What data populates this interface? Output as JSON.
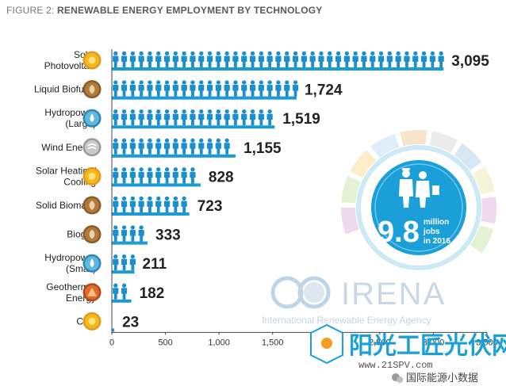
{
  "title": {
    "lead": "FIGURE 2:",
    "text": "RENEWABLE ENERGY EMPLOYMENT BY TECHNOLOGY"
  },
  "colors": {
    "bar": "#1b9ad6",
    "person": "#1b8fcc",
    "axis": "#444444"
  },
  "chart_data": {
    "type": "bar",
    "orientation": "horizontal",
    "title": "RENEWABLE ENERGY EMPLOYMENT BY TECHNOLOGY",
    "xlim": [
      0,
      3500
    ],
    "xticks": [
      "0",
      "500",
      "1,000",
      "1,500",
      "2,000",
      "2,500",
      "3,000",
      "3,500"
    ],
    "xtick_values": [
      0,
      500,
      1000,
      1500,
      2000,
      2500,
      3000,
      3500
    ],
    "categories": [
      {
        "label": [
          "Solar",
          "Photovoltaic"
        ],
        "value": 3095,
        "display": "3,095",
        "icon": "sun-icon",
        "icon_color": "#f3b81b",
        "icon_ring": "#e19a1c"
      },
      {
        "label": [
          "Liquid Biofuels"
        ],
        "value": 1724,
        "display": "1,724",
        "icon": "biofuel-leaf-icon",
        "icon_color": "#b17a3c",
        "icon_ring": "#8a5a2a"
      },
      {
        "label": [
          "Hydropower",
          "(Large)"
        ],
        "value": 1519,
        "display": "1,519",
        "icon": "water-drop-icon",
        "icon_color": "#5fb8df",
        "icon_ring": "#2f86b5"
      },
      {
        "label": [
          "Wind Energy"
        ],
        "value": 1155,
        "display": "1,155",
        "icon": "wind-icon",
        "icon_color": "#c9c9c9",
        "icon_ring": "#9a9a9a"
      },
      {
        "label": [
          "Solar Heating/",
          "Cooling"
        ],
        "value": 828,
        "display": "828",
        "icon": "sun-icon",
        "icon_color": "#f3b81b",
        "icon_ring": "#e19a1c"
      },
      {
        "label": [
          "Solid Biomass"
        ],
        "value": 723,
        "display": "723",
        "icon": "biomass-leaf-icon",
        "icon_color": "#b17a3c",
        "icon_ring": "#8a5a2a"
      },
      {
        "label": [
          "Biogas"
        ],
        "value": 333,
        "display": "333",
        "icon": "biogas-leaf-icon",
        "icon_color": "#b17a3c",
        "icon_ring": "#8a5a2a"
      },
      {
        "label": [
          "Hydropower",
          "(Small)"
        ],
        "value": 211,
        "display": "211",
        "icon": "water-drop-icon",
        "icon_color": "#5fb8df",
        "icon_ring": "#2f86b5"
      },
      {
        "label": [
          "Geothermal",
          "Energy"
        ],
        "value": 182,
        "display": "182",
        "icon": "geothermal-icon",
        "icon_color": "#e06a2c",
        "icon_ring": "#b04b1e"
      },
      {
        "label": [
          "CSP"
        ],
        "value": 23,
        "display": "23",
        "icon": "sun-icon",
        "icon_color": "#f3b81b",
        "icon_ring": "#e19a1c"
      }
    ],
    "annotation": {
      "big": "9.8",
      "small": [
        "million",
        "jobs",
        "in 2016"
      ]
    }
  },
  "logo": {
    "name": "IRENA",
    "subtitle": "International Renewable Energy Agency"
  },
  "watermark": {
    "big": "阳光工匠光伏网",
    "url": "www.21SPV.com",
    "tag": "国际能源小数据"
  }
}
